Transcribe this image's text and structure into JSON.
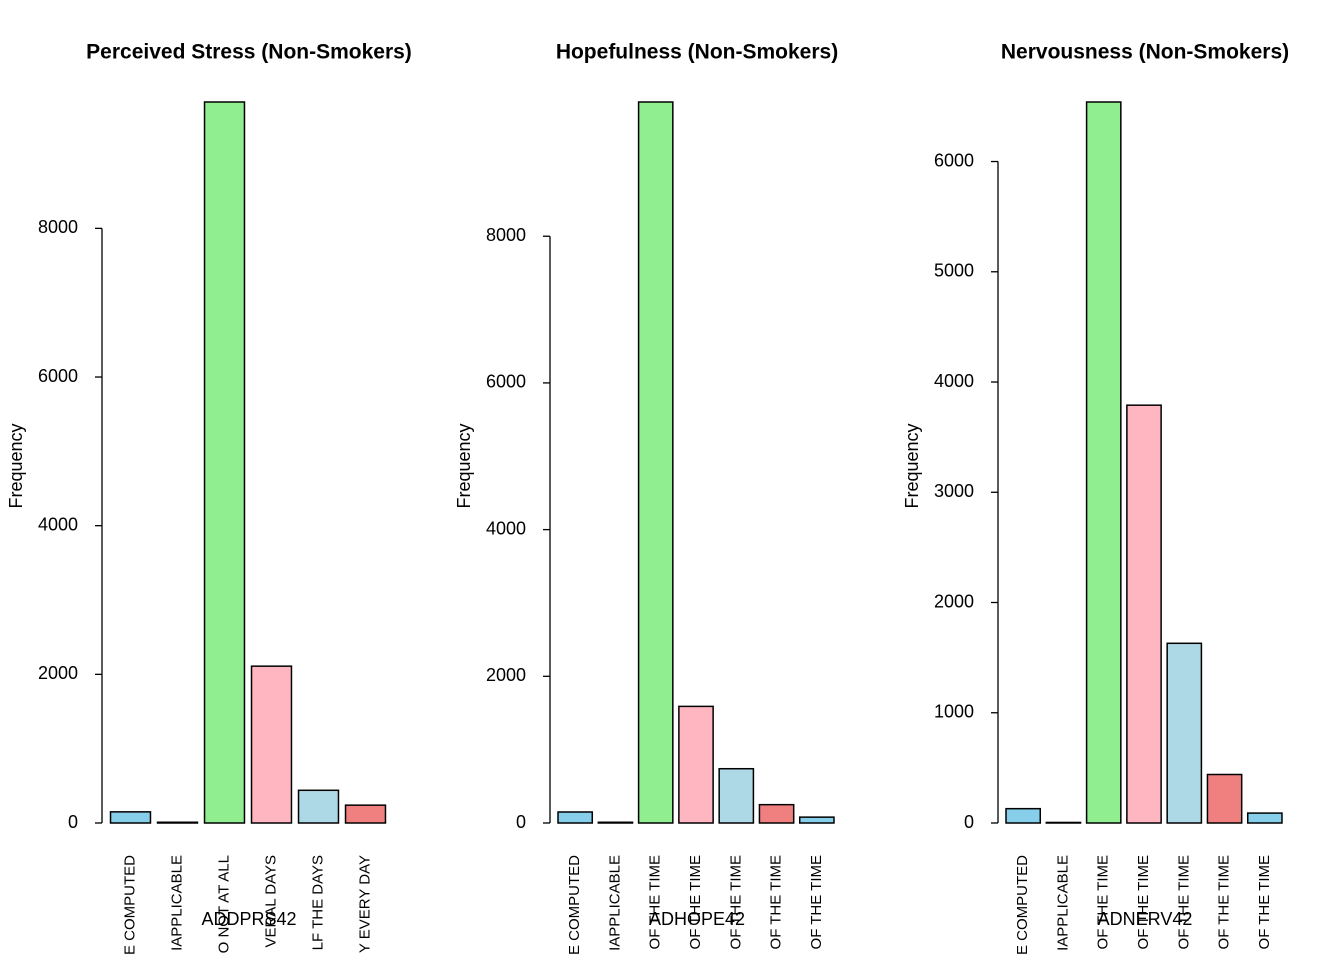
{
  "chart_data": [
    {
      "type": "bar",
      "title": "Perceived Stress (Non-Smokers)",
      "xlabel": "ADDPRS42",
      "ylabel": "Frequency",
      "categories": [
        "E COMPUTED",
        "IAPPLICABLE",
        "O NOT AT ALL",
        "VERAL DAYS",
        "LF THE DAYS",
        "Y EVERY DAY"
      ],
      "values": [
        150,
        10,
        9700,
        2110,
        440,
        240
      ],
      "colors": [
        "#87ceeb",
        "#87ceeb",
        "#90ee90",
        "#ffb6c1",
        "#add8e6",
        "#f08080"
      ],
      "ylim": [
        0,
        9700
      ],
      "yticks": [
        0,
        2000,
        4000,
        6000,
        8000
      ]
    },
    {
      "type": "bar",
      "title": "Hopefulness (Non-Smokers)",
      "xlabel": "ADHOPE42",
      "ylabel": "Frequency",
      "categories": [
        "E COMPUTED",
        "IAPPLICABLE",
        "OF THE TIME",
        "OF THE TIME",
        "OF THE TIME",
        "OF THE TIME",
        "OF THE TIME"
      ],
      "values": [
        150,
        10,
        9830,
        1590,
        740,
        250,
        80
      ],
      "colors": [
        "#87ceeb",
        "#87ceeb",
        "#90ee90",
        "#ffb6c1",
        "#add8e6",
        "#f08080",
        "#87ceeb"
      ],
      "ylim": [
        0,
        9830
      ],
      "yticks": [
        0,
        2000,
        4000,
        6000,
        8000
      ]
    },
    {
      "type": "bar",
      "title": "Nervousness (Non-Smokers)",
      "xlabel": "ADNERV42",
      "ylabel": "Frequency",
      "categories": [
        "E COMPUTED",
        "IAPPLICABLE",
        "OF THE TIME",
        "OF THE TIME",
        "OF THE TIME",
        "OF THE TIME",
        "OF THE TIME"
      ],
      "values": [
        130,
        5,
        6540,
        3790,
        1630,
        440,
        90
      ],
      "colors": [
        "#87ceeb",
        "#87ceeb",
        "#90ee90",
        "#ffb6c1",
        "#add8e6",
        "#f08080",
        "#87ceeb"
      ],
      "ylim": [
        0,
        6540
      ],
      "yticks": [
        0,
        1000,
        2000,
        3000,
        4000,
        5000,
        6000
      ]
    }
  ]
}
